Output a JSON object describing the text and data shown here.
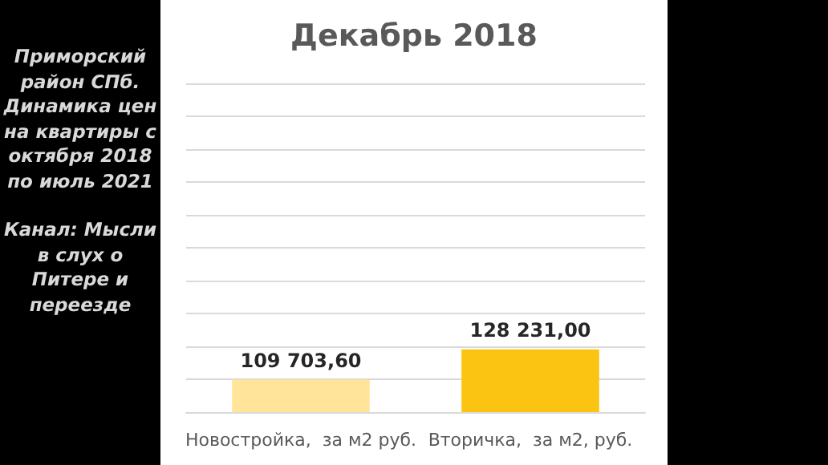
{
  "chart_data": {
    "type": "bar",
    "title": "Декабрь 2018",
    "categories": [
      "Новостройка,  за м2 руб.",
      "Вторичка,  за м2, руб."
    ],
    "values": [
      109703.6,
      128231.0
    ],
    "colors": [
      "#ffe49a",
      "#fcc412"
    ],
    "value_labels": [
      "109 703,60",
      "128 231,00"
    ],
    "ylim": [
      90000,
      290000
    ],
    "yticks": [
      {
        "value": 90000,
        "label": null
      },
      {
        "value": 110000,
        "label": null
      },
      {
        "value": 130000,
        "label": null
      },
      {
        "value": 150000,
        "label": null
      },
      {
        "value": 170000,
        "label": null
      },
      {
        "value": 190000,
        "label": null
      },
      {
        "value": 210000,
        "label": null
      },
      {
        "value": 230000,
        "label": null
      },
      {
        "value": 250000,
        "label": null
      },
      {
        "value": 270000,
        "label": null
      },
      {
        "value": 290000,
        "label": null
      }
    ],
    "tick_labels": "x",
    "grid": "y",
    "annotations": [
      "Приморский район СПб. Динамика цен на квартиры с октября 2018 по июль 2021",
      "Канал: Мысли в слух о Питере и переезде"
    ]
  }
}
